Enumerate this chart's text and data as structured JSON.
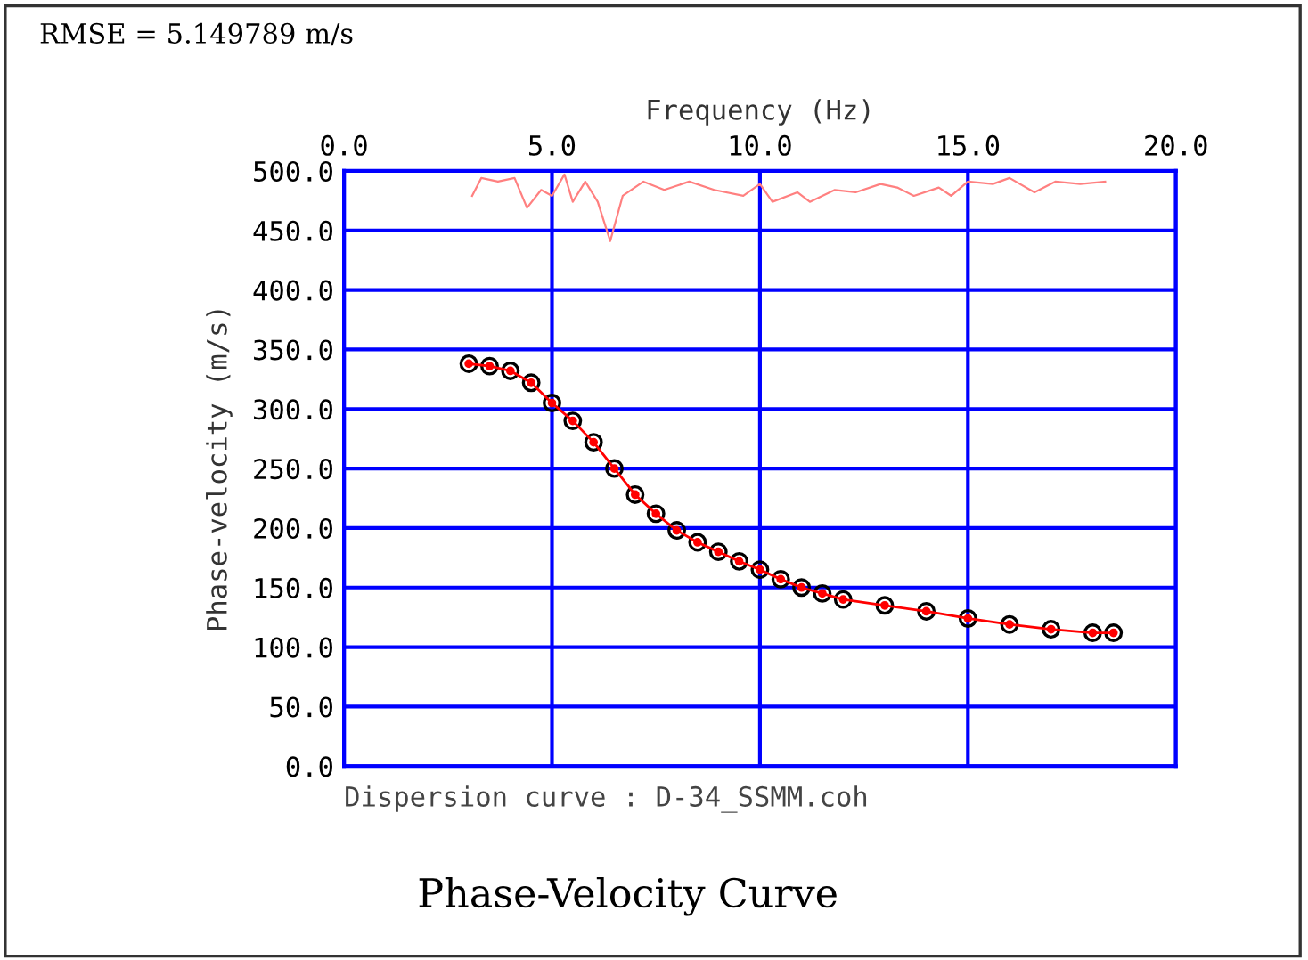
{
  "chart_data": {
    "type": "line",
    "title": "Phase-Velocity Curve",
    "xlabel": "Frequency (Hz)",
    "ylabel": "Phase-velocity (m/s)",
    "annotations": [
      "RMSE = 5.149789 m/s",
      "Dispersion curve : D-34_SSMM.coh"
    ],
    "xlim": [
      0,
      20
    ],
    "xticks": [
      {
        "value": 0,
        "label": "0.0"
      },
      {
        "value": 5,
        "label": "5.0"
      },
      {
        "value": 10,
        "label": "10.0"
      },
      {
        "value": 15,
        "label": "15.0"
      },
      {
        "value": 20,
        "label": "20.0"
      }
    ],
    "ylim": [
      0,
      500
    ],
    "yticks": [
      {
        "value": 0,
        "label": "0.0"
      },
      {
        "value": 50,
        "label": "50.0"
      },
      {
        "value": 100,
        "label": "100.0"
      },
      {
        "value": 150,
        "label": "150.0"
      },
      {
        "value": 200,
        "label": "200.0"
      },
      {
        "value": 250,
        "label": "250.0"
      },
      {
        "value": 300,
        "label": "300.0"
      },
      {
        "value": 350,
        "label": "350.0"
      },
      {
        "value": 400,
        "label": "400.0"
      },
      {
        "value": 450,
        "label": "450.0"
      },
      {
        "value": 500,
        "label": "500.0"
      }
    ],
    "grid": true,
    "legend": false,
    "series": [
      {
        "type": "line",
        "color": "#ff8080",
        "marker": "none",
        "x": [
          3.08,
          3.3,
          3.7,
          4.1,
          4.4,
          4.74,
          5.0,
          5.3,
          5.5,
          5.8,
          6.1,
          6.4,
          6.7,
          7.2,
          7.7,
          8.3,
          8.9,
          9.6,
          10.0,
          10.3,
          10.9,
          11.2,
          11.8,
          12.3,
          12.9,
          13.3,
          13.7,
          14.3,
          14.6,
          15.0,
          15.6,
          16.0,
          16.6,
          17.1,
          17.7,
          18.3
        ],
        "values": [
          479,
          494,
          491,
          494,
          469,
          484,
          479,
          497,
          474,
          491,
          474,
          441,
          479,
          491,
          484,
          491,
          484,
          479,
          489,
          474,
          482,
          474,
          484,
          482,
          489,
          486,
          479,
          486,
          479,
          491,
          489,
          494,
          482,
          491,
          489,
          491
        ]
      },
      {
        "type": "scatter",
        "color": "#000000",
        "marker": "circle",
        "x": [
          3.0,
          3.5,
          4.0,
          4.5,
          5.0,
          5.5,
          6.0,
          6.5,
          7.0,
          7.5,
          8.0,
          8.5,
          9.0,
          9.5,
          10.0,
          10.5,
          11.0,
          11.5,
          12.0,
          13.0,
          14.0,
          15.0,
          16.0,
          17.0,
          18.0,
          18.5
        ],
        "values": [
          338,
          336,
          332,
          322,
          305,
          290,
          272,
          250,
          228,
          212,
          198,
          188,
          180,
          172,
          165,
          157,
          150,
          145,
          140,
          135,
          130,
          124,
          119,
          115,
          112,
          112
        ]
      },
      {
        "color": "#ff0000",
        "marker": "circle",
        "x": [
          3.0,
          3.5,
          4.0,
          4.5,
          5.0,
          5.5,
          6.0,
          6.5,
          7.0,
          7.5,
          8.0,
          8.5,
          9.0,
          9.5,
          10.0,
          10.5,
          11.0,
          11.5,
          12.0,
          13.0,
          14.0,
          15.0,
          16.0,
          17.0,
          18.0,
          18.5
        ],
        "values": [
          338,
          336,
          332,
          322,
          305,
          290,
          272,
          250,
          228,
          212,
          198,
          188,
          180,
          172,
          165,
          157,
          150,
          145,
          140,
          135,
          130,
          124,
          119,
          115,
          112,
          112
        ]
      }
    ]
  }
}
